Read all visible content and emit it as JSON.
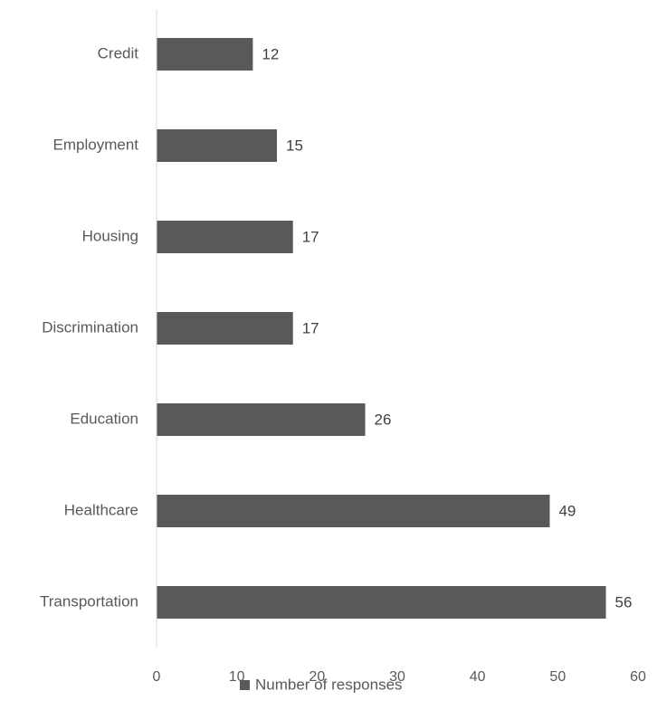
{
  "chart_data": {
    "type": "bar",
    "orientation": "horizontal",
    "categories": [
      "Credit",
      "Employment",
      "Housing",
      "Discrimination",
      "Education",
      "Healthcare",
      "Transportation"
    ],
    "series": [
      {
        "name": "Number of responses",
        "values": [
          12,
          15,
          17,
          17,
          26,
          49,
          56
        ],
        "color": "#595959"
      }
    ],
    "xlim": [
      0,
      60
    ],
    "xticks": [
      0,
      10,
      20,
      30,
      40,
      50,
      60
    ],
    "grid": false,
    "data_labels": true,
    "legend_position": "bottom"
  }
}
